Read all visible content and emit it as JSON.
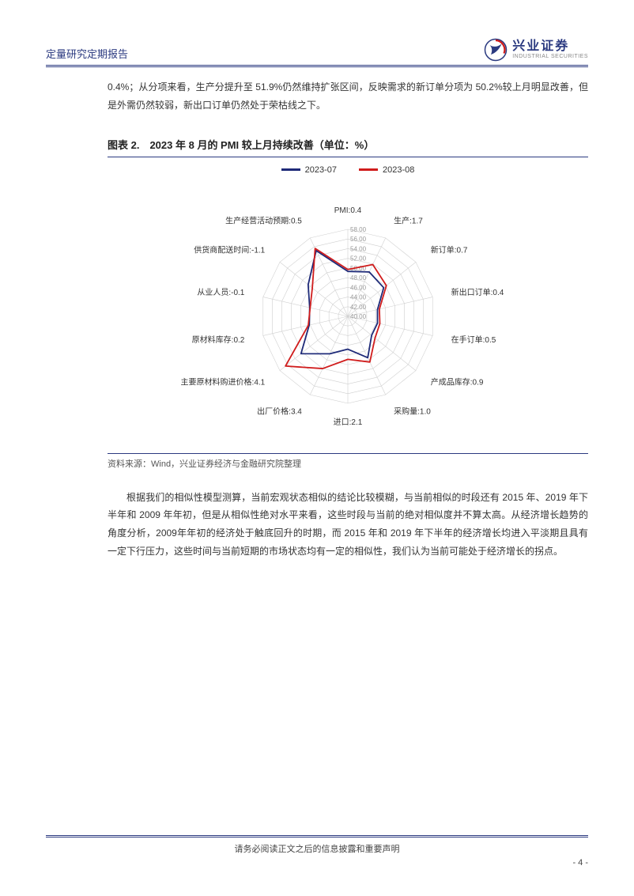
{
  "header": {
    "report_type": "定量研究定期报告",
    "logo": {
      "cn": "兴业证券",
      "en": "INDUSTRIAL SECURITIES"
    }
  },
  "intro_para": "0.4%；从分项来看，生产分提升至 51.9%仍然维持扩张区间，反映需求的新订单分项为 50.2%较上月明显改善，但是外需仍然较弱，新出口订单仍然处于荣枯线之下。",
  "chart": {
    "type": "radar",
    "title": "图表 2.　2023 年 8 月的 PMI 较上月持续改善（单位：%）",
    "legend": [
      {
        "label": "2023-07",
        "color": "#1e2a78"
      },
      {
        "label": "2023-08",
        "color": "#d01c1c"
      }
    ],
    "axis_labels": [
      "PMI:0.4",
      "生产:1.7",
      "新订单:0.7",
      "新出口订单:0.4",
      "在手订单:0.5",
      "产成品库存:0.9",
      "采购量:1.0",
      "进口:2.1",
      "出厂价格:3.4",
      "主要原材料购进价格:4.1",
      "原材料库存:0.2",
      "从业人员:-0.1",
      "供货商配送时间:-1.1",
      "生产经营活动预期:0.5"
    ],
    "r_ticks": [
      40.0,
      42.0,
      44.0,
      46.0,
      48.0,
      50.0,
      52.0,
      54.0,
      56.0,
      58.0
    ],
    "r_min": 40.0,
    "r_max": 58.0,
    "series": {
      "2023-07": [
        49.3,
        50.2,
        49.5,
        46.3,
        46.3,
        46.3,
        49.5,
        46.8,
        48.6,
        52.4,
        48.2,
        48.1,
        50.5,
        55.1
      ],
      "2023-08": [
        49.7,
        51.9,
        50.2,
        46.7,
        46.8,
        47.2,
        50.5,
        48.9,
        52.0,
        56.5,
        48.4,
        48.0,
        49.4,
        55.6
      ]
    },
    "label_fontsize": 10,
    "tick_fontsize": 8,
    "tick_color": "#999999",
    "grid_color": "#d0d0d0",
    "background_color": "#ffffff",
    "line_width": 1.8,
    "source": "资料来源：Wind，兴业证券经济与金融研究院整理"
  },
  "para2": "根据我们的相似性模型测算，当前宏观状态相似的结论比较模糊，与当前相似的时段还有 2015 年、2019 年下半年和 2009 年年初，但是从相似性绝对水平来看，这些时段与当前的绝对相似度并不算太高。从经济增长趋势的角度分析，2009年年初的经济处于触底回升的时期，而 2015 年和 2019 年下半年的经济增长均进入平淡期且具有一定下行压力，这些时间与当前短期的市场状态均有一定的相似性，我们认为当前可能处于经济增长的拐点。",
  "footer": {
    "disclaimer": "请务必阅读正文之后的信息披露和重要声明",
    "page": "- 4 -"
  }
}
